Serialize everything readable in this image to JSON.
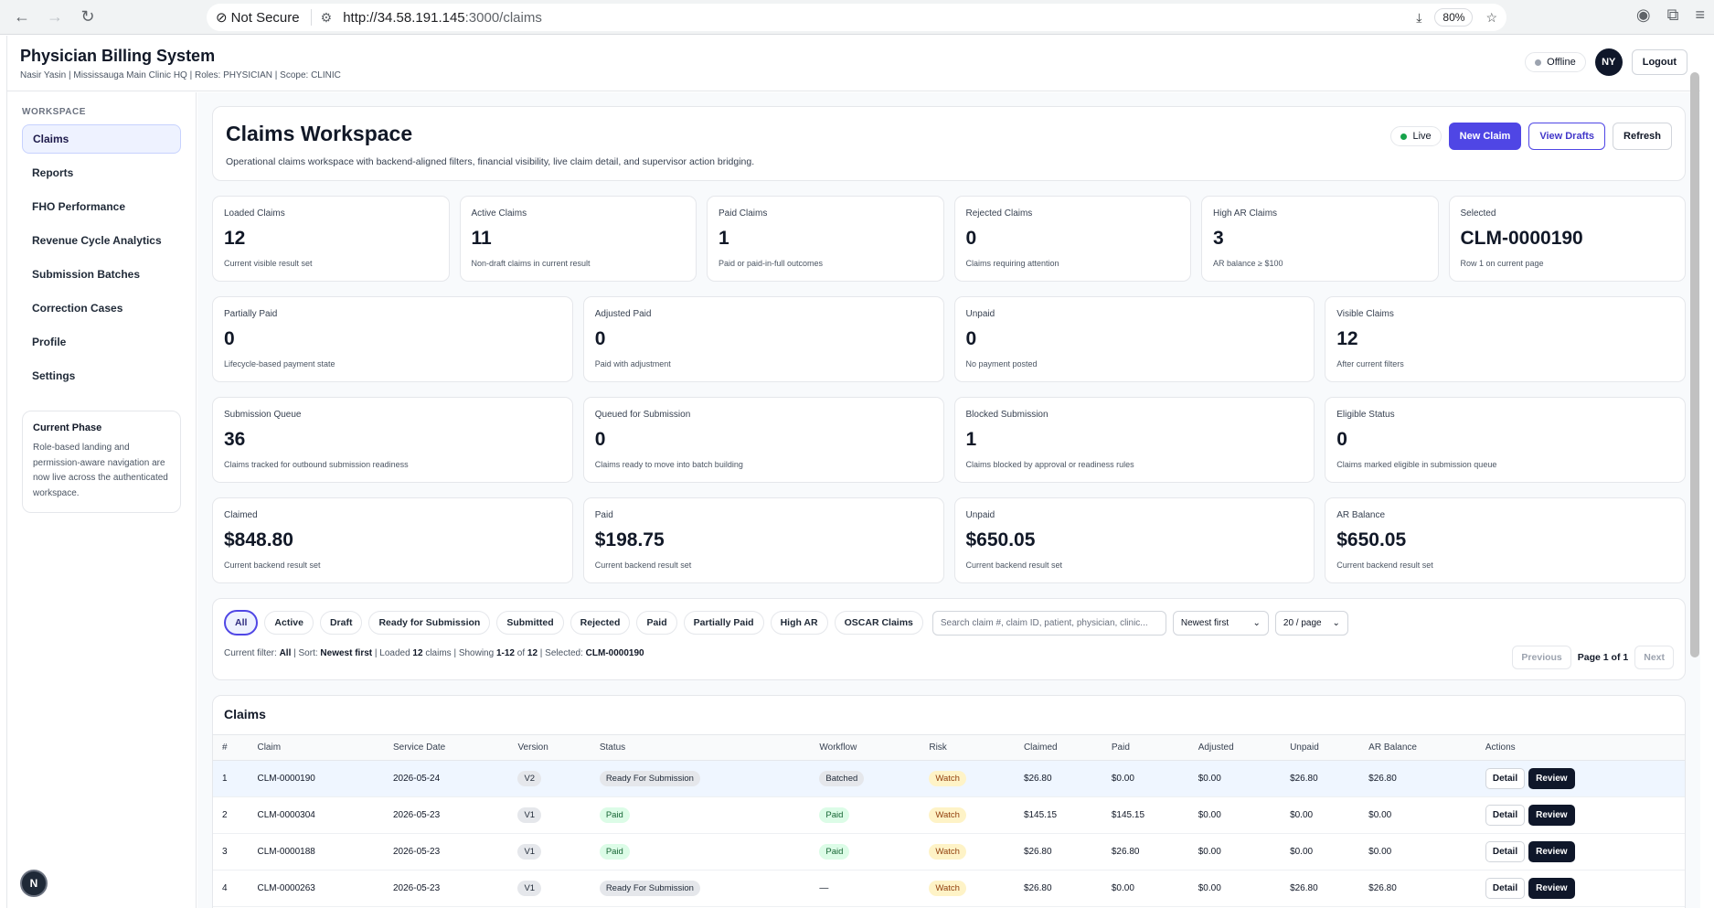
{
  "browser": {
    "security": "Not Secure",
    "url_host": "http://34.58.191.145",
    "url_path": ":3000/claims",
    "zoom": "80%"
  },
  "app": {
    "title": "Physician Billing System",
    "subtitle": "Nasir Yasin | Mississauga Main Clinic HQ | Roles: PHYSICIAN | Scope: CLINIC",
    "status": "Offline",
    "avatar": "NY",
    "logout": "Logout"
  },
  "sidebar": {
    "section": "WORKSPACE",
    "items": [
      {
        "label": "Claims"
      },
      {
        "label": "Reports"
      },
      {
        "label": "FHO Performance"
      },
      {
        "label": "Revenue Cycle Analytics"
      },
      {
        "label": "Submission Batches"
      },
      {
        "label": "Correction Cases"
      },
      {
        "label": "Profile"
      },
      {
        "label": "Settings"
      }
    ],
    "phase": {
      "title": "Current Phase",
      "text": "Role-based landing and permission-aware navigation are now live across the authenticated workspace."
    },
    "logo": "N"
  },
  "header": {
    "title": "Claims Workspace",
    "description": "Operational claims workspace with backend-aligned filters, financial visibility, live claim detail, and supervisor action bridging.",
    "live": "Live",
    "new_claim": "New Claim",
    "view_drafts": "View Drafts",
    "refresh": "Refresh"
  },
  "stats1": [
    {
      "label": "Loaded Claims",
      "value": "12",
      "desc": "Current visible result set"
    },
    {
      "label": "Active Claims",
      "value": "11",
      "desc": "Non-draft claims in current result"
    },
    {
      "label": "Paid Claims",
      "value": "1",
      "desc": "Paid or paid-in-full outcomes"
    },
    {
      "label": "Rejected Claims",
      "value": "0",
      "desc": "Claims requiring attention"
    },
    {
      "label": "High AR Claims",
      "value": "3",
      "desc": "AR balance ≥ $100"
    },
    {
      "label": "Selected",
      "value": "CLM-0000190",
      "desc": "Row 1 on current page"
    }
  ],
  "stats2": [
    {
      "label": "Partially Paid",
      "value": "0",
      "desc": "Lifecycle-based payment state"
    },
    {
      "label": "Adjusted Paid",
      "value": "0",
      "desc": "Paid with adjustment"
    },
    {
      "label": "Unpaid",
      "value": "0",
      "desc": "No payment posted"
    },
    {
      "label": "Visible Claims",
      "value": "12",
      "desc": "After current filters"
    }
  ],
  "stats3": [
    {
      "label": "Submission Queue",
      "value": "36",
      "desc": "Claims tracked for outbound submission readiness"
    },
    {
      "label": "Queued for Submission",
      "value": "0",
      "desc": "Claims ready to move into batch building"
    },
    {
      "label": "Blocked Submission",
      "value": "1",
      "desc": "Claims blocked by approval or readiness rules"
    },
    {
      "label": "Eligible Status",
      "value": "0",
      "desc": "Claims marked eligible in submission queue"
    }
  ],
  "stats4": [
    {
      "label": "Claimed",
      "value": "$848.80",
      "desc": "Current backend result set"
    },
    {
      "label": "Paid",
      "value": "$198.75",
      "desc": "Current backend result set"
    },
    {
      "label": "Unpaid",
      "value": "$650.05",
      "desc": "Current backend result set"
    },
    {
      "label": "AR Balance",
      "value": "$650.05",
      "desc": "Current backend result set"
    }
  ],
  "filters": {
    "chips": [
      "All",
      "Active",
      "Draft",
      "Ready for Submission",
      "Submitted",
      "Rejected",
      "Paid",
      "Partially Paid",
      "High AR",
      "OSCAR Claims"
    ],
    "search_placeholder": "Search claim #, claim ID, patient, physician, clinic...",
    "sort": "Newest first",
    "page_size": "20 / page",
    "status": {
      "filter_label": "Current filter:",
      "filter": "All",
      "sort_label": "| Sort:",
      "sort": "Newest first",
      "loaded_label": "| Loaded",
      "loaded": "12",
      "loaded_suffix": "claims | Showing",
      "range": "1-12",
      "of": "of",
      "total": "12",
      "sel_label": "| Selected:",
      "selected": "CLM-0000190"
    },
    "previous": "Previous",
    "page": "Page 1 of 1",
    "next": "Next"
  },
  "table": {
    "title": "Claims",
    "columns": [
      "#",
      "Claim",
      "Service Date",
      "Version",
      "Status",
      "Workflow",
      "Risk",
      "Claimed",
      "Paid",
      "Adjusted",
      "Unpaid",
      "AR Balance",
      "Actions"
    ],
    "detail": "Detail",
    "review": "Review",
    "rows": [
      {
        "n": "1",
        "claim": "CLM-0000190",
        "date": "2026-05-24",
        "version": "V2",
        "status": "Ready For Submission",
        "workflow": "Batched",
        "risk": "Watch",
        "claimed": "$26.80",
        "paid": "$0.00",
        "adjusted": "$0.00",
        "unpaid": "$26.80",
        "ar": "$26.80"
      },
      {
        "n": "2",
        "claim": "CLM-0000304",
        "date": "2026-05-23",
        "version": "V1",
        "status": "Paid",
        "workflow": "Paid",
        "risk": "Watch",
        "claimed": "$145.15",
        "paid": "$145.15",
        "adjusted": "$0.00",
        "unpaid": "$0.00",
        "ar": "$0.00"
      },
      {
        "n": "3",
        "claim": "CLM-0000188",
        "date": "2026-05-23",
        "version": "V1",
        "status": "Paid",
        "workflow": "Paid",
        "risk": "Watch",
        "claimed": "$26.80",
        "paid": "$26.80",
        "adjusted": "$0.00",
        "unpaid": "$0.00",
        "ar": "$0.00"
      },
      {
        "n": "4",
        "claim": "CLM-0000263",
        "date": "2026-05-23",
        "version": "V1",
        "status": "Ready For Submission",
        "workflow": "—",
        "risk": "Watch",
        "claimed": "$26.80",
        "paid": "$0.00",
        "adjusted": "$0.00",
        "unpaid": "$26.80",
        "ar": "$26.80"
      }
    ]
  },
  "colors": {
    "accent": "#4f46e5",
    "live": "#16a34a",
    "offline": "#9ca3af"
  }
}
